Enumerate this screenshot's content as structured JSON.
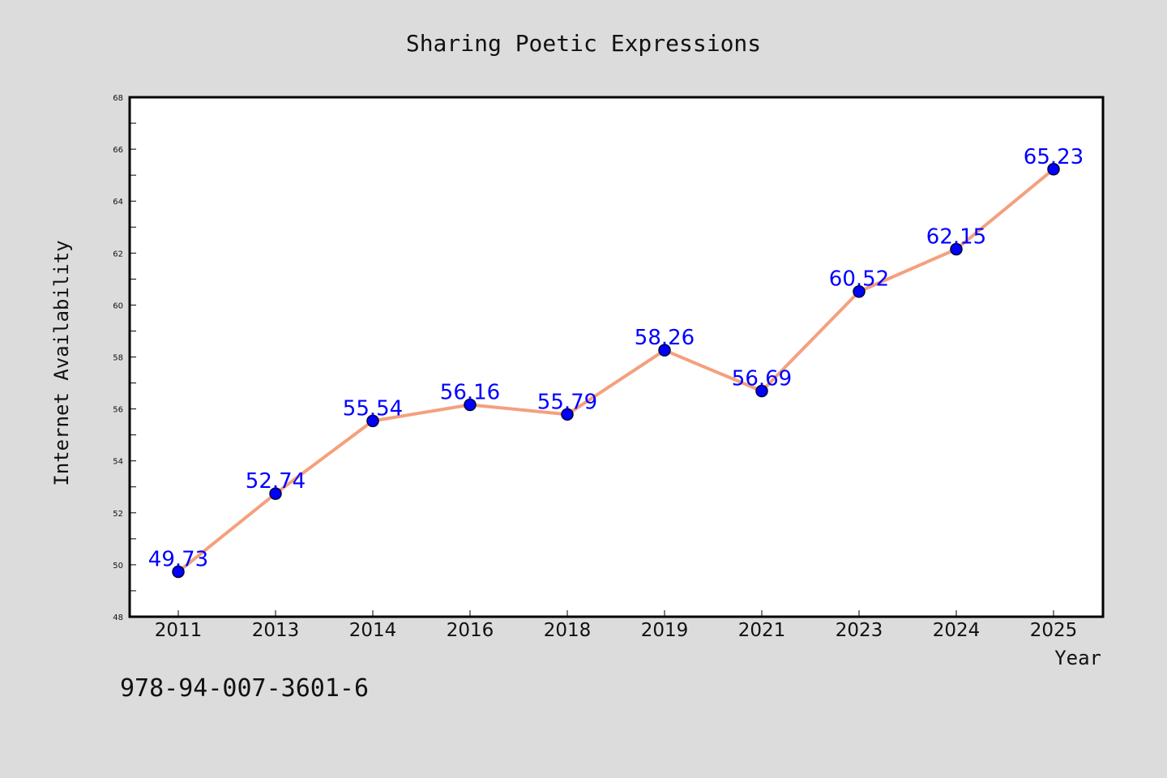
{
  "chart_data": {
    "type": "line",
    "title": "Sharing Poetic Expressions",
    "xlabel": "Year",
    "ylabel": "Internet Availability",
    "categories": [
      "2011",
      "2013",
      "2014",
      "2016",
      "2018",
      "2019",
      "2021",
      "2023",
      "2024",
      "2025"
    ],
    "values": [
      49.73,
      52.74,
      55.54,
      56.16,
      55.79,
      58.26,
      56.69,
      60.52,
      62.15,
      65.23
    ],
    "ylim": [
      48,
      68
    ],
    "yticks": [
      "48",
      "50",
      "52",
      "54",
      "56",
      "58",
      "60",
      "62",
      "64",
      "66",
      "68"
    ],
    "line_color": "#f4a07e",
    "marker_color": "#0000ff",
    "label_color": "#0000ff",
    "grid": false,
    "legend": "none"
  },
  "footer": {
    "isbn": "978-94-007-3601-6"
  }
}
